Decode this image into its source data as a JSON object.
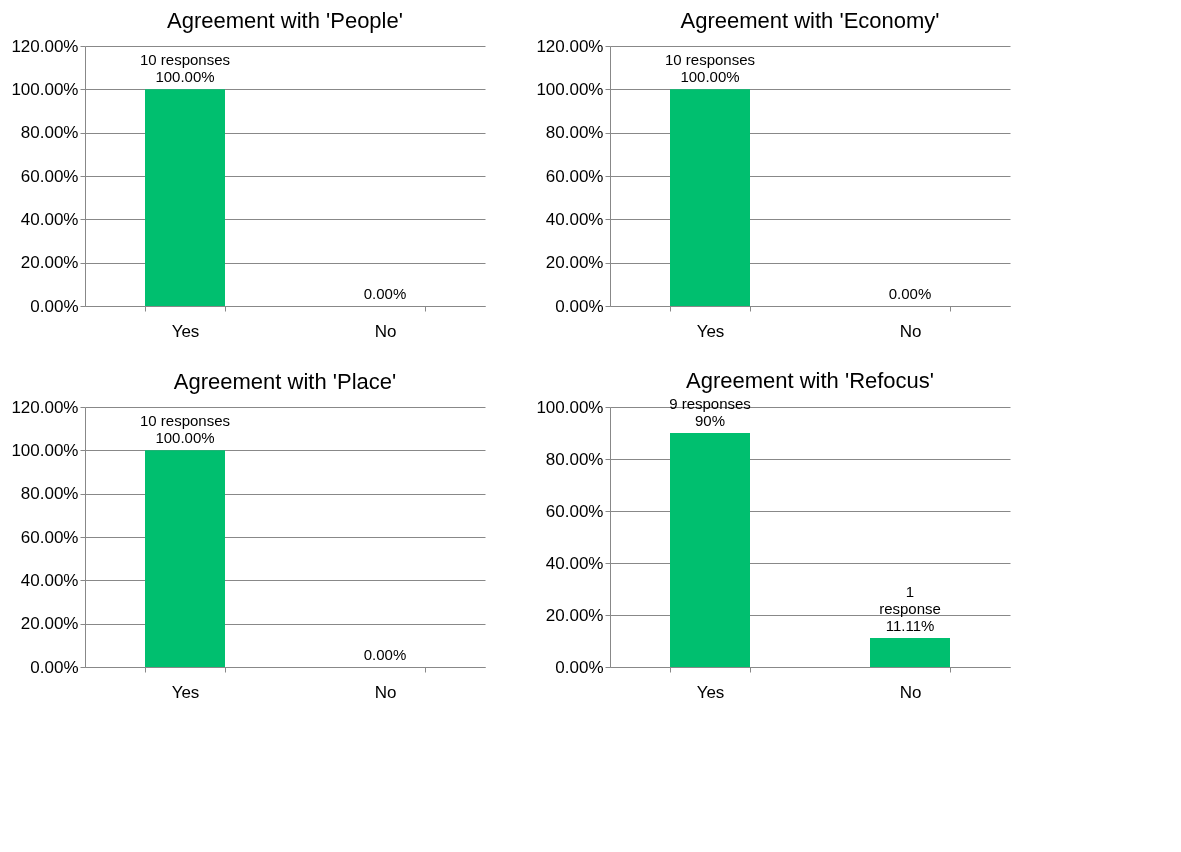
{
  "chart_data": [
    {
      "type": "bar",
      "title": "Agreement with 'People'",
      "categories": [
        "Yes",
        "No"
      ],
      "values": [
        100,
        0
      ],
      "color": "#00bf6f",
      "value_labels": [
        "10 responses\n100.00%",
        "0.00%"
      ],
      "ylim": [
        0,
        120
      ],
      "yticks": [
        {
          "value": 0,
          "label": "0.00%"
        },
        {
          "value": 20,
          "label": "20.00%"
        },
        {
          "value": 40,
          "label": "40.00%"
        },
        {
          "value": 60,
          "label": "60.00%"
        },
        {
          "value": 80,
          "label": "80.00%"
        },
        {
          "value": 100,
          "label": "100.00%"
        },
        {
          "value": 120,
          "label": "120.00%"
        }
      ],
      "grid": "y",
      "legend": false
    },
    {
      "type": "bar",
      "title": "Agreement with 'Economy'",
      "categories": [
        "Yes",
        "No"
      ],
      "values": [
        100,
        0
      ],
      "color": "#00bf6f",
      "value_labels": [
        "10 responses\n100.00%",
        "0.00%"
      ],
      "ylim": [
        0,
        120
      ],
      "yticks": [
        {
          "value": 0,
          "label": "0.00%"
        },
        {
          "value": 20,
          "label": "20.00%"
        },
        {
          "value": 40,
          "label": "40.00%"
        },
        {
          "value": 60,
          "label": "60.00%"
        },
        {
          "value": 80,
          "label": "80.00%"
        },
        {
          "value": 100,
          "label": "100.00%"
        },
        {
          "value": 120,
          "label": "120.00%"
        }
      ],
      "grid": "y",
      "legend": false
    },
    {
      "type": "bar",
      "title": "Agreement with 'Place'",
      "categories": [
        "Yes",
        "No"
      ],
      "values": [
        100,
        0
      ],
      "color": "#00bf6f",
      "value_labels": [
        "10 responses\n100.00%",
        "0.00%"
      ],
      "ylim": [
        0,
        120
      ],
      "yticks": [
        {
          "value": 0,
          "label": "0.00%"
        },
        {
          "value": 20,
          "label": "20.00%"
        },
        {
          "value": 40,
          "label": "40.00%"
        },
        {
          "value": 60,
          "label": "60.00%"
        },
        {
          "value": 80,
          "label": "80.00%"
        },
        {
          "value": 100,
          "label": "100.00%"
        },
        {
          "value": 120,
          "label": "120.00%"
        }
      ],
      "grid": "y",
      "legend": false
    },
    {
      "type": "bar",
      "title": "Agreement with 'Refocus'",
      "categories": [
        "Yes",
        "No"
      ],
      "values": [
        90,
        11.11
      ],
      "color": "#00bf6f",
      "value_labels": [
        "9 responses\n90%",
        "1\nresponse\n11.11%"
      ],
      "ylim": [
        0,
        100
      ],
      "yticks": [
        {
          "value": 0,
          "label": "0.00%"
        },
        {
          "value": 20,
          "label": "20.00%"
        },
        {
          "value": 40,
          "label": "40.00%"
        },
        {
          "value": 60,
          "label": "60.00%"
        },
        {
          "value": 80,
          "label": "80.00%"
        },
        {
          "value": 100,
          "label": "100.00%"
        }
      ],
      "grid": "y",
      "legend": false
    }
  ]
}
